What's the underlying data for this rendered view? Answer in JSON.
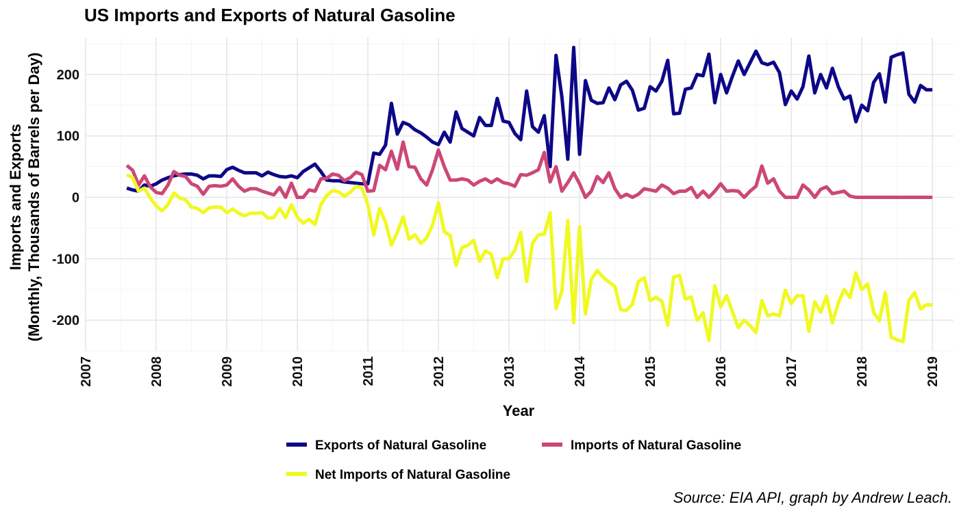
{
  "chart_data": {
    "type": "line",
    "title": "US Imports and Exports of Natural Gasoline",
    "xlabel": "Year",
    "ylabel_line1": "Imports and Exports",
    "ylabel_line2": "(Monthly, Thousands of Barrels per Day)",
    "caption": "Source: EIA API, graph by Andrew Leach.",
    "xlim": [
      2007,
      2019.3
    ],
    "ylim": [
      -250,
      260
    ],
    "x_ticks": [
      "2007",
      "2008",
      "2009",
      "2010",
      "2011",
      "2012",
      "2013",
      "2014",
      "2015",
      "2016",
      "2017",
      "2018",
      "2019"
    ],
    "y_ticks": [
      "-200",
      "-100",
      "0",
      "100",
      "200"
    ],
    "grid": true,
    "legend_position": "bottom",
    "start": "2007-08",
    "series": [
      {
        "name": "Exports of Natural Gasoline",
        "color": "#0d0887",
        "values": [
          15,
          12,
          10,
          20,
          18,
          22,
          28,
          32,
          35,
          37,
          38,
          38,
          36,
          30,
          35,
          35,
          34,
          45,
          49,
          44,
          40,
          40,
          40,
          35,
          41,
          37,
          34,
          33,
          35,
          32,
          42,
          48,
          54,
          42,
          28,
          27,
          27,
          25,
          24,
          23,
          22,
          22,
          72,
          70,
          85,
          153,
          103,
          122,
          118,
          110,
          105,
          98,
          90,
          86,
          106,
          90,
          139,
          112,
          106,
          100,
          130,
          117,
          117,
          161,
          124,
          122,
          104,
          94,
          173,
          115,
          106,
          133,
          50,
          231,
          163,
          62,
          244,
          70,
          190,
          158,
          153,
          154,
          178,
          159,
          183,
          189,
          174,
          142,
          145,
          180,
          173,
          189,
          223,
          136,
          137,
          176,
          178,
          200,
          198,
          233,
          154,
          200,
          170,
          197,
          222,
          200,
          219,
          238,
          219,
          216,
          220,
          203,
          151,
          173,
          160,
          180,
          230,
          170,
          200,
          178,
          210,
          180,
          160,
          165,
          123,
          150,
          141,
          187,
          201,
          155,
          228,
          232,
          235,
          168,
          155,
          182,
          175,
          175
        ]
      },
      {
        "name": "Imports of Natural Gasoline",
        "color": "#cc4778",
        "values": [
          52,
          44,
          20,
          35,
          17,
          8,
          6,
          20,
          42,
          36,
          34,
          22,
          18,
          5,
          18,
          19,
          18,
          20,
          30,
          18,
          10,
          14,
          14,
          10,
          7,
          4,
          16,
          0,
          23,
          0,
          0,
          12,
          10,
          30,
          31,
          38,
          36,
          27,
          32,
          41,
          37,
          10,
          11,
          52,
          45,
          75,
          46,
          90,
          50,
          49,
          30,
          20,
          45,
          77,
          50,
          28,
          28,
          30,
          28,
          20,
          26,
          30,
          24,
          30,
          24,
          22,
          18,
          37,
          36,
          40,
          45,
          73,
          25,
          50,
          10,
          24,
          40,
          22,
          0,
          10,
          34,
          24,
          40,
          14,
          0,
          5,
          0,
          5,
          14,
          12,
          10,
          20,
          15,
          6,
          10,
          10,
          16,
          0,
          10,
          0,
          10,
          22,
          10,
          11,
          10,
          0,
          10,
          18,
          51,
          23,
          30,
          10,
          0,
          0,
          0,
          20,
          12,
          0,
          13,
          17,
          6,
          8,
          10,
          2,
          0,
          0,
          0,
          0,
          0,
          0,
          0,
          0,
          0,
          0,
          0,
          0,
          0,
          0
        ]
      },
      {
        "name": "Net Imports of Natural Gasoline",
        "color": "#f0f921",
        "values": [
          37,
          32,
          10,
          15,
          -1,
          -14,
          -22,
          -12,
          7,
          -1,
          -4,
          -16,
          -18,
          -25,
          -17,
          -16,
          -16,
          -25,
          -19,
          -26,
          -30,
          -26,
          -26,
          -25,
          -34,
          -33,
          -18,
          -33,
          -12,
          -32,
          -42,
          -36,
          -44,
          -12,
          3,
          11,
          9,
          2,
          8,
          18,
          15,
          -12,
          -61,
          -18,
          -40,
          -78,
          -57,
          -32,
          -68,
          -61,
          -75,
          -66,
          -45,
          -9,
          -56,
          -62,
          -111,
          -82,
          -78,
          -70,
          -104,
          -87,
          -93,
          -131,
          -100,
          -100,
          -86,
          -57,
          -137,
          -75,
          -61,
          -60,
          -25,
          -181,
          -153,
          -38,
          -204,
          -48,
          -190,
          -134,
          -119,
          -130,
          -138,
          -145,
          -183,
          -184,
          -174,
          -137,
          -131,
          -168,
          -163,
          -169,
          -208,
          -130,
          -127,
          -166,
          -162,
          -200,
          -188,
          -233,
          -144,
          -178,
          -160,
          -186,
          -212,
          -200,
          -209,
          -220,
          -168,
          -193,
          -190,
          -193,
          -151,
          -173,
          -160,
          -160,
          -218,
          -170,
          -187,
          -161,
          -204,
          -172,
          -150,
          -163,
          -123,
          -150,
          -141,
          -187,
          -201,
          -155,
          -228,
          -232,
          -235,
          -168,
          -155,
          -182,
          -175,
          -175
        ]
      }
    ]
  }
}
